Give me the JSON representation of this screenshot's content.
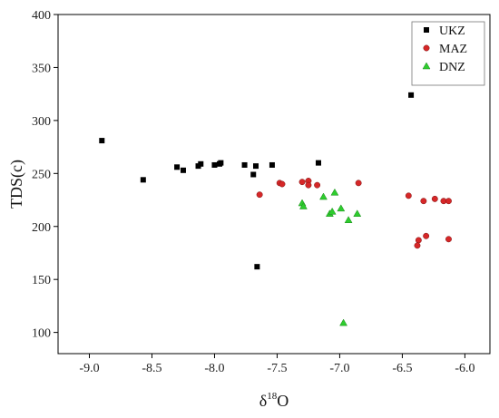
{
  "chart_data": {
    "type": "scatter",
    "title": "",
    "xlabel_base": "δ",
    "xlabel_sup": "18",
    "xlabel_tail": "O",
    "ylabel": "TDS(c)",
    "xlim": [
      -9.25,
      -5.8
    ],
    "ylim": [
      80,
      400
    ],
    "x_ticks": [
      -9.0,
      -8.5,
      -8.0,
      -7.5,
      -7.0,
      -6.5,
      -6.0
    ],
    "x_tick_labels": [
      "-9.0",
      "-8.5",
      "-8.0",
      "-7.5",
      "-7.0",
      "-6.5",
      "-6.0"
    ],
    "y_ticks": [
      100,
      150,
      200,
      250,
      300,
      350,
      400
    ],
    "y_tick_labels": [
      "100",
      "150",
      "200",
      "250",
      "300",
      "350",
      "400"
    ],
    "grid": false,
    "legend_position": "top-right",
    "series": [
      {
        "name": "UKZ",
        "marker": "square",
        "color": "#000000",
        "points": [
          [
            -8.9,
            281
          ],
          [
            -8.57,
            244
          ],
          [
            -8.3,
            256
          ],
          [
            -8.25,
            253
          ],
          [
            -8.13,
            257
          ],
          [
            -8.11,
            259
          ],
          [
            -8.0,
            258
          ],
          [
            -7.96,
            259
          ],
          [
            -7.95,
            260
          ],
          [
            -7.76,
            258
          ],
          [
            -7.69,
            249
          ],
          [
            -7.67,
            257
          ],
          [
            -7.54,
            258
          ],
          [
            -7.17,
            260
          ],
          [
            -6.43,
            324
          ],
          [
            -7.66,
            162
          ]
        ]
      },
      {
        "name": "MAZ",
        "marker": "circle",
        "color": "#d62728",
        "points": [
          [
            -7.64,
            230
          ],
          [
            -7.48,
            241
          ],
          [
            -7.46,
            240
          ],
          [
            -7.3,
            242
          ],
          [
            -7.25,
            243
          ],
          [
            -7.25,
            239
          ],
          [
            -7.18,
            239
          ],
          [
            -6.85,
            241
          ],
          [
            -6.45,
            229
          ],
          [
            -6.33,
            224
          ],
          [
            -6.24,
            226
          ],
          [
            -6.17,
            224
          ],
          [
            -6.13,
            224
          ],
          [
            -6.37,
            187
          ],
          [
            -6.38,
            182
          ],
          [
            -6.31,
            191
          ],
          [
            -6.13,
            188
          ]
        ]
      },
      {
        "name": "DNZ",
        "marker": "triangle",
        "color": "#2ecc2e",
        "points": [
          [
            -7.3,
            222
          ],
          [
            -7.29,
            219
          ],
          [
            -7.13,
            228
          ],
          [
            -7.08,
            212
          ],
          [
            -7.06,
            214
          ],
          [
            -7.04,
            232
          ],
          [
            -6.99,
            217
          ],
          [
            -6.93,
            206
          ],
          [
            -6.86,
            212
          ],
          [
            -6.97,
            109
          ]
        ]
      }
    ]
  }
}
